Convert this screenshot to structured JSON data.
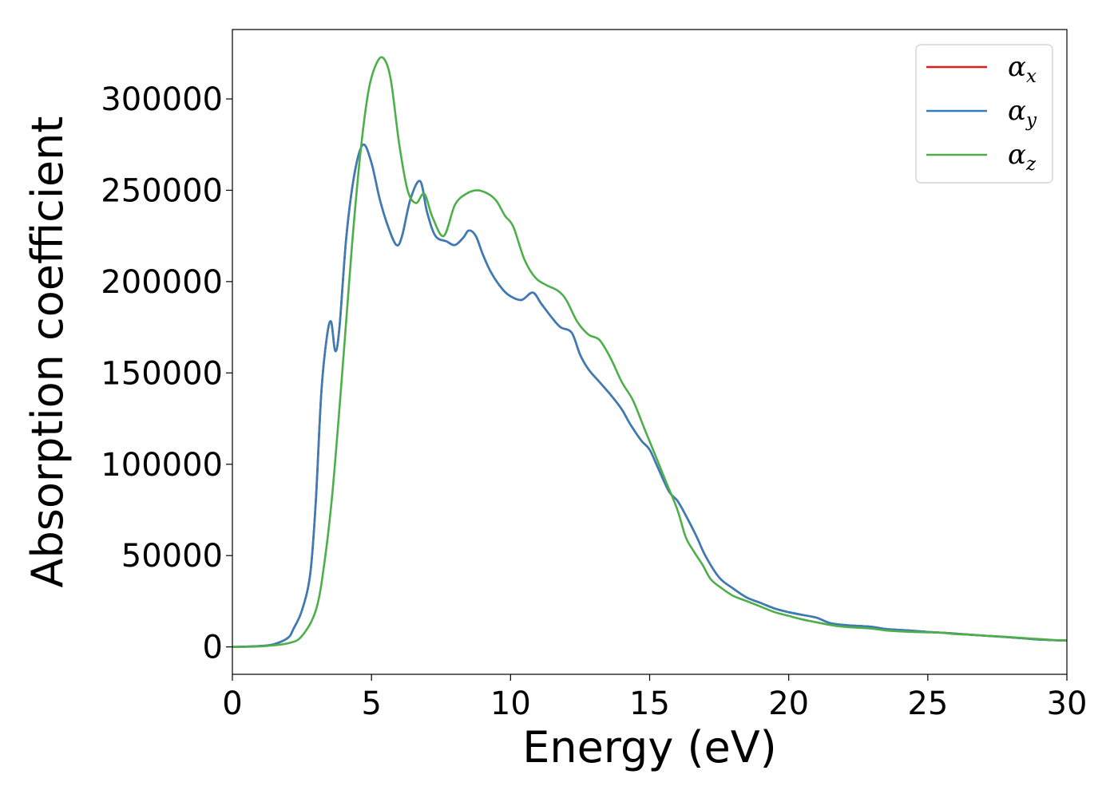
{
  "chart_data": {
    "type": "line",
    "title": "",
    "xlabel": "Energy (eV)",
    "ylabel": "Absorption coefficient",
    "xlim": [
      0,
      30
    ],
    "ylim": [
      -15000,
      338000
    ],
    "xticks": [
      0,
      5,
      10,
      15,
      20,
      25,
      30
    ],
    "xtick_labels": [
      "0",
      "5",
      "10",
      "15",
      "20",
      "25",
      "30"
    ],
    "yticks": [
      0,
      50000,
      100000,
      150000,
      200000,
      250000,
      300000
    ],
    "ytick_labels": [
      "0",
      "50000",
      "100000",
      "150000",
      "200000",
      "250000",
      "300000"
    ],
    "grid": false,
    "legend_position": "top-right",
    "series": [
      {
        "name": "αx",
        "symbol": "α",
        "subscript": "x",
        "color": "#e41a1c",
        "x": [
          0,
          1,
          1.5,
          2,
          2.2,
          2.5,
          2.8,
          3,
          3.2,
          3.4,
          3.55,
          3.7,
          3.85,
          4.1,
          4.4,
          4.7,
          5,
          5.3,
          5.6,
          5.9,
          6.1,
          6.4,
          6.75,
          7,
          7.3,
          7.7,
          8,
          8.3,
          8.5,
          8.75,
          9,
          9.3,
          9.7,
          10,
          10.4,
          10.8,
          11.1,
          11.5,
          11.8,
          12.2,
          12.5,
          12.8,
          13.2,
          13.6,
          14,
          14.3,
          14.7,
          15,
          15.3,
          15.7,
          16,
          16.3,
          16.7,
          17,
          17.5,
          18,
          18.5,
          19,
          19.5,
          20,
          20.5,
          21,
          21.5,
          22,
          22.5,
          23,
          23.5,
          24,
          24.5,
          25,
          25.5,
          26,
          26.5,
          27,
          27.5,
          28,
          28.5,
          29,
          29.5,
          30
        ],
        "y": [
          0,
          500,
          1500,
          5000,
          10000,
          20000,
          40000,
          80000,
          140000,
          170000,
          178000,
          162000,
          175000,
          225000,
          260000,
          275000,
          265000,
          245000,
          230000,
          220000,
          225000,
          245000,
          255000,
          238000,
          225000,
          222000,
          220000,
          224000,
          228000,
          225000,
          215000,
          205000,
          196000,
          192000,
          190000,
          194000,
          188000,
          180000,
          175000,
          172000,
          160000,
          152000,
          145000,
          138000,
          130000,
          122000,
          113000,
          108000,
          98000,
          85000,
          80000,
          72000,
          60000,
          50000,
          38000,
          32000,
          27000,
          24000,
          21000,
          19000,
          17500,
          16000,
          13000,
          12000,
          11500,
          11000,
          9800,
          9300,
          8800,
          8200,
          7800,
          7300,
          6700,
          6200,
          5700,
          5200,
          4600,
          4000,
          3700,
          3500
        ]
      },
      {
        "name": "αy",
        "symbol": "α",
        "subscript": "y",
        "color": "#377eb8",
        "x": [
          0,
          1,
          1.5,
          2,
          2.2,
          2.5,
          2.8,
          3,
          3.2,
          3.4,
          3.55,
          3.7,
          3.85,
          4.1,
          4.4,
          4.7,
          5,
          5.3,
          5.6,
          5.9,
          6.1,
          6.4,
          6.75,
          7,
          7.3,
          7.7,
          8,
          8.3,
          8.5,
          8.75,
          9,
          9.3,
          9.7,
          10,
          10.4,
          10.8,
          11.1,
          11.5,
          11.8,
          12.2,
          12.5,
          12.8,
          13.2,
          13.6,
          14,
          14.3,
          14.7,
          15,
          15.3,
          15.7,
          16,
          16.3,
          16.7,
          17,
          17.5,
          18,
          18.5,
          19,
          19.5,
          20,
          20.5,
          21,
          21.5,
          22,
          22.5,
          23,
          23.5,
          24,
          24.5,
          25,
          25.5,
          26,
          26.5,
          27,
          27.5,
          28,
          28.5,
          29,
          29.5,
          30
        ],
        "y": [
          0,
          500,
          1500,
          5000,
          10000,
          20000,
          40000,
          80000,
          140000,
          170000,
          178000,
          162000,
          175000,
          225000,
          260000,
          275000,
          265000,
          245000,
          230000,
          220000,
          225000,
          245000,
          255000,
          238000,
          225000,
          222000,
          220000,
          224000,
          228000,
          225000,
          215000,
          205000,
          196000,
          192000,
          190000,
          194000,
          188000,
          180000,
          175000,
          172000,
          160000,
          152000,
          145000,
          138000,
          130000,
          122000,
          113000,
          108000,
          98000,
          85000,
          80000,
          72000,
          60000,
          50000,
          38000,
          32000,
          27000,
          24000,
          21000,
          19000,
          17500,
          16000,
          13000,
          12000,
          11500,
          11000,
          9800,
          9300,
          8800,
          8200,
          7800,
          7300,
          6700,
          6200,
          5700,
          5200,
          4600,
          4000,
          3700,
          3500
        ]
      },
      {
        "name": "αz",
        "symbol": "α",
        "subscript": "z",
        "color": "#4daf4a",
        "x": [
          0,
          1,
          2,
          2.5,
          3,
          3.3,
          3.6,
          4,
          4.3,
          4.6,
          4.9,
          5.2,
          5.45,
          5.7,
          6,
          6.3,
          6.6,
          6.9,
          7.2,
          7.6,
          8,
          8.4,
          8.8,
          9.2,
          9.5,
          9.8,
          10.1,
          10.5,
          10.9,
          11.3,
          11.7,
          12,
          12.4,
          12.8,
          13.2,
          13.6,
          14,
          14.4,
          14.8,
          15.2,
          15.6,
          16,
          16.3,
          16.6,
          16.9,
          17.2,
          17.6,
          18,
          18.5,
          19,
          19.5,
          20,
          20.5,
          21,
          21.5,
          22,
          22.5,
          23,
          23.5,
          24,
          24.5,
          25,
          25.5,
          26,
          26.5,
          27,
          27.5,
          28,
          28.5,
          29,
          29.5,
          30
        ],
        "y": [
          0,
          300,
          2000,
          6000,
          20000,
          45000,
          85000,
          160000,
          220000,
          270000,
          305000,
          320000,
          322000,
          310000,
          275000,
          250000,
          243000,
          248000,
          235000,
          225000,
          242000,
          248000,
          250000,
          248000,
          244000,
          236000,
          230000,
          212000,
          202000,
          198000,
          195000,
          190000,
          178000,
          171000,
          168000,
          158000,
          145000,
          135000,
          120000,
          105000,
          90000,
          75000,
          60000,
          52000,
          45000,
          37000,
          32000,
          28000,
          25000,
          22000,
          19000,
          17000,
          15000,
          13500,
          12000,
          11000,
          10500,
          10000,
          9000,
          8500,
          8200,
          8000,
          7800,
          7000,
          6700,
          6200,
          5800,
          5300,
          4800,
          4300,
          3800,
          3500
        ]
      }
    ]
  }
}
